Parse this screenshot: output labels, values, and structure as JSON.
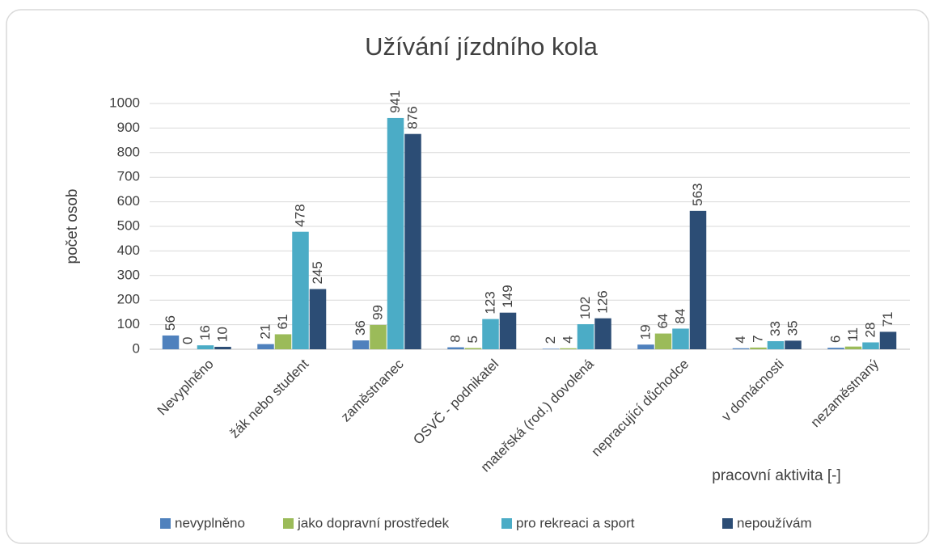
{
  "chart_data": {
    "type": "bar",
    "title": "Užívání jízdního kola",
    "y_label": "počet osob",
    "x_label": "pracovní aktivita [-]",
    "categories": [
      "Nevyplněno",
      "žák nebo student",
      "zaměstnanec",
      "OSVČ - podnikatel",
      "mateřská (rod.) dovolená",
      "nepracující důchodce",
      "v domácnosti",
      "nezaměstnaný"
    ],
    "series": [
      {
        "name": "nevyplněno",
        "color": "#4f81bd",
        "values": [
          56,
          21,
          36,
          8,
          2,
          19,
          4,
          6
        ]
      },
      {
        "name": "jako dopravní prostředek",
        "color": "#9bbb59",
        "values": [
          0,
          61,
          99,
          5,
          4,
          64,
          7,
          11
        ]
      },
      {
        "name": "pro rekreaci a sport",
        "color": "#4bacc6",
        "values": [
          16,
          478,
          941,
          123,
          102,
          84,
          33,
          28
        ]
      },
      {
        "name": "nepoužívám",
        "color": "#2c4d75",
        "values": [
          10,
          245,
          876,
          149,
          126,
          563,
          35,
          71
        ]
      }
    ],
    "ylim": [
      0,
      1000
    ],
    "yticks": [
      0,
      100,
      200,
      300,
      400,
      500,
      600,
      700,
      800,
      900,
      1000
    ],
    "grid": true,
    "legend": "bottom"
  }
}
